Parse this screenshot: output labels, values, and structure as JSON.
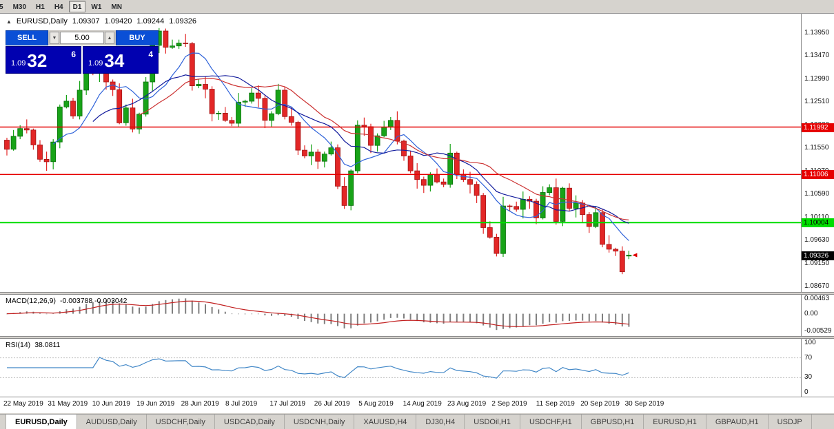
{
  "toolbar": {
    "timeframes": [
      "5",
      "M30",
      "H1",
      "H4",
      "D1",
      "W1",
      "MN"
    ],
    "active_index": 4
  },
  "chart_header": {
    "expand_icon": "▲",
    "title": "EURUSD,Daily",
    "open": "1.09307",
    "high": "1.09420",
    "low": "1.09244",
    "close": "1.09326"
  },
  "trade_panel": {
    "sell_label": "SELL",
    "buy_label": "BUY",
    "volume": "5.00",
    "spin_up_icon": "▲",
    "spin_down_icon": "▼",
    "sell_price": {
      "prefix": "1.09",
      "big": "32",
      "sup": "6"
    },
    "buy_price": {
      "prefix": "1.09",
      "big": "34",
      "sup": "4"
    }
  },
  "price_axis": {
    "ticks": [
      "1.13950",
      "1.13470",
      "1.12990",
      "1.12510",
      "1.12030",
      "1.11550",
      "1.11070",
      "1.10590",
      "1.10110",
      "1.09630",
      "1.09150",
      "1.08670"
    ]
  },
  "horizontal_lines": [
    {
      "price": 1.11992,
      "label": "1.11992",
      "color": "#e60000",
      "text_color": "#ffffff",
      "width": 1.4
    },
    {
      "price": 1.11006,
      "label": "1.11006",
      "color": "#e60000",
      "text_color": "#ffffff",
      "width": 1.4
    },
    {
      "price": 1.10004,
      "label": "1.10004",
      "color": "#00dd00",
      "text_color": "#000000",
      "width": 2
    }
  ],
  "current_price": {
    "label": "1.09326",
    "price": 1.09326,
    "bg": "#000000",
    "text_color": "#ffffff"
  },
  "macd_pane": {
    "name": "MACD(12,26,9)",
    "values": "-0.003788 -0.003042",
    "axis": [
      "0.00463",
      "0.00",
      "-0.00529"
    ],
    "range": [
      -0.0068,
      0.0058
    ],
    "histogram_color": "#7f7f7f",
    "signal_color": "#c22020"
  },
  "rsi_pane": {
    "name": "RSI(14)",
    "value": "38.0811",
    "axis": [
      "100",
      "70",
      "30",
      "0"
    ],
    "levels": [
      70,
      30
    ],
    "line_color": "#4187c7"
  },
  "date_axis": [
    "22 May 2019",
    "31 May 2019",
    "10 Jun 2019",
    "19 Jun 2019",
    "28 Jun 2019",
    "8 Jul 2019",
    "17 Jul 2019",
    "26 Jul 2019",
    "5 Aug 2019",
    "14 Aug 2019",
    "23 Aug 2019",
    "2 Sep 2019",
    "11 Sep 2019",
    "20 Sep 2019",
    "30 Sep 2019"
  ],
  "tabs": {
    "items": [
      "EURUSD,Daily",
      "AUDUSD,Daily",
      "USDCHF,Daily",
      "USDCAD,Daily",
      "USDCNH,Daily",
      "XAUUSD,H4",
      "DJ30,H4",
      "USDOil,H1",
      "USDCHF,H1",
      "GBPUSD,H1",
      "EURUSD,H1",
      "GBPAUD,H1",
      "USDJP"
    ],
    "active_index": 0
  },
  "chart_data": {
    "type": "candlestick",
    "symbol": "EURUSD",
    "timeframe": "Daily",
    "price_range": [
      1.0856,
      1.1432
    ],
    "first_open": 1.1172,
    "closes": [
      1.1153,
      1.118,
      1.1196,
      1.1193,
      1.1162,
      1.1132,
      1.1127,
      1.1168,
      1.1241,
      1.1253,
      1.1222,
      1.1276,
      1.1334,
      1.1312,
      1.1328,
      1.1293,
      1.1277,
      1.1208,
      1.1239,
      1.1195,
      1.1226,
      1.1293,
      1.1369,
      1.1399,
      1.1365,
      1.1368,
      1.1374,
      1.1373,
      1.1285,
      1.1288,
      1.1278,
      1.1227,
      1.1228,
      1.1213,
      1.1207,
      1.1251,
      1.1253,
      1.127,
      1.1259,
      1.1213,
      1.1227,
      1.1276,
      1.1221,
      1.1209,
      1.1151,
      1.1139,
      1.1147,
      1.1128,
      1.1143,
      1.1156,
      1.1076,
      1.1036,
      1.1108,
      1.1203,
      1.12,
      1.1161,
      1.1181,
      1.1199,
      1.1213,
      1.117,
      1.1139,
      1.1108,
      1.109,
      1.1078,
      1.11,
      1.1085,
      1.108,
      1.1145,
      1.1101,
      1.109,
      1.108,
      1.1057,
      1.099,
      1.097,
      1.0936,
      1.1035,
      1.1034,
      1.1028,
      1.1049,
      1.1045,
      1.101,
      1.1063,
      1.1073,
      1.1003,
      1.1072,
      1.103,
      1.1041,
      1.1017,
      1.0992,
      1.1021,
      1.0955,
      1.0945,
      1.0941,
      1.0898,
      1.09326
    ],
    "last_candle": {
      "open": 1.09307,
      "high": 1.0942,
      "low": 1.09244,
      "close": 1.09326
    },
    "up_color": "#18a318",
    "down_color": "#e32727",
    "up_stroke": "#0b6e0b",
    "down_stroke": "#9e1414",
    "moving_averages": [
      {
        "period": 8,
        "color": "#2e62d9"
      },
      {
        "period": 14,
        "color": "#121b9c"
      },
      {
        "period": 21,
        "color": "#cc3333"
      }
    ]
  }
}
